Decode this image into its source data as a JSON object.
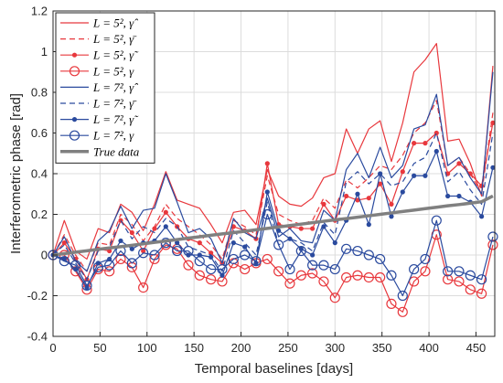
{
  "chart_data": {
    "type": "line",
    "xlabel": "Temporal baselines [days]",
    "ylabel": "Interferometric phase [rad]",
    "xlim": [
      0,
      470
    ],
    "ylim": [
      -0.4,
      1.2
    ],
    "xticks": [
      "0",
      "50",
      "100",
      "150",
      "200",
      "250",
      "300",
      "350",
      "400",
      "450"
    ],
    "yticks": [
      "-0.4",
      "-0.2",
      "0",
      "0.2",
      "0.4",
      "0.6",
      "0.8",
      "1",
      "1.2"
    ],
    "grid": true,
    "legend_position": "top-left",
    "x": [
      0,
      12,
      24,
      36,
      48,
      60,
      72,
      84,
      96,
      108,
      120,
      132,
      144,
      156,
      168,
      180,
      192,
      204,
      216,
      228,
      240,
      252,
      264,
      276,
      288,
      300,
      312,
      324,
      336,
      348,
      360,
      372,
      384,
      396,
      408,
      420,
      432,
      444,
      456,
      468
    ],
    "series": [
      {
        "name": "L = 5², γ̂",
        "color": "#e8383d",
        "style": "solid",
        "marker": "none",
        "values": [
          0,
          0.17,
          0.02,
          -0.02,
          0.13,
          0.11,
          0.25,
          0.21,
          0.12,
          0.25,
          0.41,
          0.27,
          0.25,
          0.23,
          0.15,
          0.06,
          0.21,
          0.22,
          0.15,
          0.42,
          0.29,
          0.25,
          0.24,
          0.28,
          0.38,
          0.4,
          0.62,
          0.5,
          0.62,
          0.66,
          0.46,
          0.65,
          0.9,
          0.96,
          1.04,
          0.56,
          0.57,
          0.45,
          0.29,
          0.93
        ]
      },
      {
        "name": "L = 5², γ̄",
        "color": "#e8383d",
        "style": "dashed",
        "marker": "none",
        "values": [
          0,
          0.1,
          0.0,
          -0.08,
          0.06,
          0.05,
          0.2,
          0.15,
          0.07,
          0.14,
          0.25,
          0.18,
          0.14,
          0.1,
          0.05,
          -0.02,
          0.17,
          0.14,
          0.1,
          0.39,
          0.2,
          0.17,
          0.15,
          0.17,
          0.28,
          0.23,
          0.37,
          0.33,
          0.38,
          0.44,
          0.42,
          0.49,
          0.6,
          0.65,
          0.76,
          0.44,
          0.48,
          0.4,
          0.3,
          0.7
        ]
      },
      {
        "name": "L = 5², γ̃",
        "color": "#e8383d",
        "style": "solid",
        "marker": "dot",
        "values": [
          0,
          0.06,
          -0.02,
          -0.12,
          0.03,
          0.02,
          0.17,
          0.11,
          0.02,
          0.13,
          0.21,
          0.14,
          0.08,
          0.06,
          0.01,
          -0.04,
          0.14,
          0.12,
          0.08,
          0.45,
          0.15,
          0.14,
          0.13,
          0.13,
          0.25,
          0.17,
          0.29,
          0.27,
          0.28,
          0.35,
          0.25,
          0.41,
          0.55,
          0.55,
          0.6,
          0.4,
          0.45,
          0.4,
          0.34,
          0.65
        ]
      },
      {
        "name": "L = 5², γ",
        "color": "#e8383d",
        "style": "solid",
        "marker": "circle",
        "values": [
          0,
          0.0,
          -0.08,
          -0.17,
          -0.07,
          -0.08,
          -0.02,
          -0.06,
          -0.16,
          -0.02,
          0.05,
          0.03,
          -0.05,
          -0.1,
          -0.12,
          -0.13,
          -0.04,
          -0.07,
          -0.04,
          -0.02,
          -0.08,
          -0.14,
          -0.1,
          -0.09,
          -0.13,
          -0.21,
          -0.11,
          -0.1,
          -0.11,
          -0.11,
          -0.24,
          -0.28,
          -0.13,
          -0.08,
          0.1,
          -0.12,
          -0.13,
          -0.17,
          -0.19,
          0.05
        ]
      },
      {
        "name": "L = 7², γ̂",
        "color": "#2a4a9e",
        "style": "solid",
        "marker": "none",
        "values": [
          0,
          0.09,
          -0.03,
          -0.08,
          0.07,
          0.12,
          0.24,
          0.13,
          0.22,
          0.23,
          0.4,
          0.26,
          0.11,
          0.13,
          0.08,
          -0.04,
          0.18,
          0.11,
          0.08,
          0.28,
          0.09,
          0.13,
          0.07,
          0.06,
          0.22,
          0.17,
          0.42,
          0.5,
          0.38,
          0.53,
          0.38,
          0.44,
          0.62,
          0.64,
          0.79,
          0.44,
          0.48,
          0.38,
          0.3,
          0.9
        ]
      },
      {
        "name": "L = 7², γ̄",
        "color": "#2a4a9e",
        "style": "dashed",
        "marker": "none",
        "values": [
          0,
          0.05,
          -0.04,
          -0.12,
          0.02,
          0.04,
          0.17,
          0.08,
          0.14,
          0.11,
          0.18,
          0.14,
          0.04,
          0.02,
          0.0,
          -0.08,
          0.12,
          0.06,
          0.0,
          0.26,
          0.05,
          0.08,
          0.06,
          0.02,
          0.16,
          0.1,
          0.36,
          0.41,
          0.35,
          0.4,
          0.34,
          0.36,
          0.45,
          0.48,
          0.6,
          0.36,
          0.41,
          0.32,
          0.25,
          0.6
        ]
      },
      {
        "name": "L = 7², γ̃",
        "color": "#2a4a9e",
        "style": "solid",
        "marker": "dot",
        "values": [
          0,
          -0.02,
          -0.07,
          -0.16,
          -0.04,
          -0.02,
          0.07,
          0.03,
          0.06,
          0.07,
          0.14,
          0.06,
          0.0,
          0.0,
          -0.01,
          -0.1,
          0.06,
          0.04,
          -0.04,
          0.31,
          0.12,
          0.08,
          0.03,
          0.0,
          0.14,
          0.06,
          0.17,
          0.3,
          0.15,
          0.4,
          0.19,
          0.31,
          0.39,
          0.39,
          0.51,
          0.29,
          0.29,
          0.26,
          0.19,
          0.43
        ]
      },
      {
        "name": "L = 7², γ",
        "color": "#2a4a9e",
        "style": "solid",
        "marker": "circle",
        "values": [
          0,
          -0.03,
          -0.05,
          -0.15,
          -0.06,
          -0.05,
          0.02,
          -0.04,
          0.01,
          0.0,
          0.06,
          0.02,
          0.02,
          -0.03,
          -0.07,
          -0.07,
          -0.02,
          0.0,
          -0.03,
          0.2,
          0.05,
          -0.07,
          0.02,
          -0.05,
          -0.05,
          -0.07,
          0.03,
          0.02,
          0.0,
          -0.02,
          -0.1,
          -0.2,
          -0.07,
          -0.02,
          0.17,
          -0.08,
          -0.08,
          -0.1,
          -0.12,
          0.09
        ]
      },
      {
        "name": "True data",
        "color": "#808080",
        "style": "thick",
        "marker": "none",
        "values": [
          0,
          0.007,
          0.014,
          0.021,
          0.028,
          0.035,
          0.041,
          0.048,
          0.055,
          0.062,
          0.069,
          0.076,
          0.083,
          0.09,
          0.097,
          0.104,
          0.11,
          0.117,
          0.124,
          0.131,
          0.138,
          0.145,
          0.152,
          0.159,
          0.166,
          0.173,
          0.179,
          0.186,
          0.193,
          0.2,
          0.207,
          0.214,
          0.221,
          0.228,
          0.235,
          0.242,
          0.248,
          0.255,
          0.262,
          0.29
        ]
      }
    ]
  }
}
